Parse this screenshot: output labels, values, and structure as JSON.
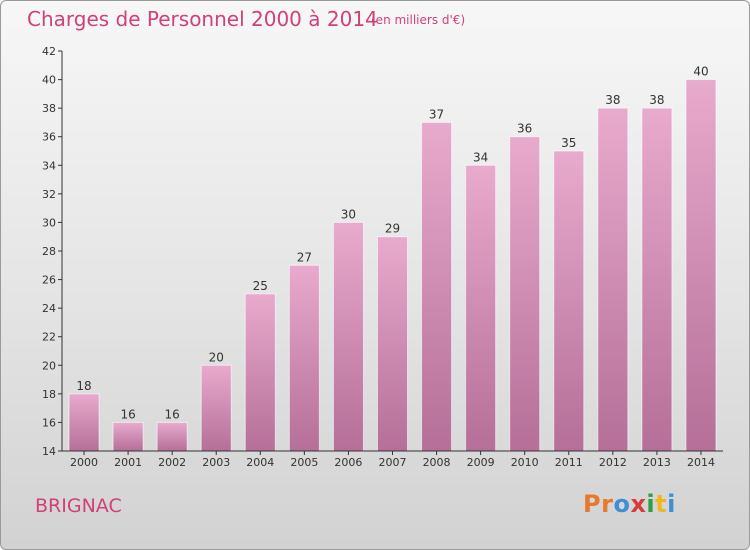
{
  "header": {
    "title": "Charges de Personnel 2000 à 2014",
    "subtitle": "(en milliers d'€)"
  },
  "footer": {
    "town": "BRIGNAC",
    "logo_text": "Proxiti",
    "logo_colors": [
      "#e8782a",
      "#e8782a",
      "#3f8fd4",
      "#d93a3a",
      "#2f9e44",
      "#f0b820",
      "#3f8fd4"
    ]
  },
  "colors": {
    "bar_top": "#e8aacd",
    "bar_bottom": "#b56f98",
    "accent": "#d0407a"
  },
  "chart_data": {
    "type": "bar",
    "title": "Charges de Personnel 2000 à 2014",
    "subtitle": "(en milliers d'€)",
    "categories": [
      "2000",
      "2001",
      "2002",
      "2003",
      "2004",
      "2005",
      "2006",
      "2007",
      "2008",
      "2009",
      "2010",
      "2011",
      "2012",
      "2013",
      "2014"
    ],
    "values": [
      18,
      16,
      16,
      20,
      25,
      27,
      30,
      29,
      37,
      34,
      36,
      35,
      38,
      38,
      40
    ],
    "ylim": [
      14,
      42
    ],
    "yticks": [
      14,
      16,
      18,
      20,
      22,
      24,
      26,
      28,
      30,
      32,
      34,
      36,
      38,
      40,
      42
    ],
    "grid": false,
    "data_labels": true
  }
}
